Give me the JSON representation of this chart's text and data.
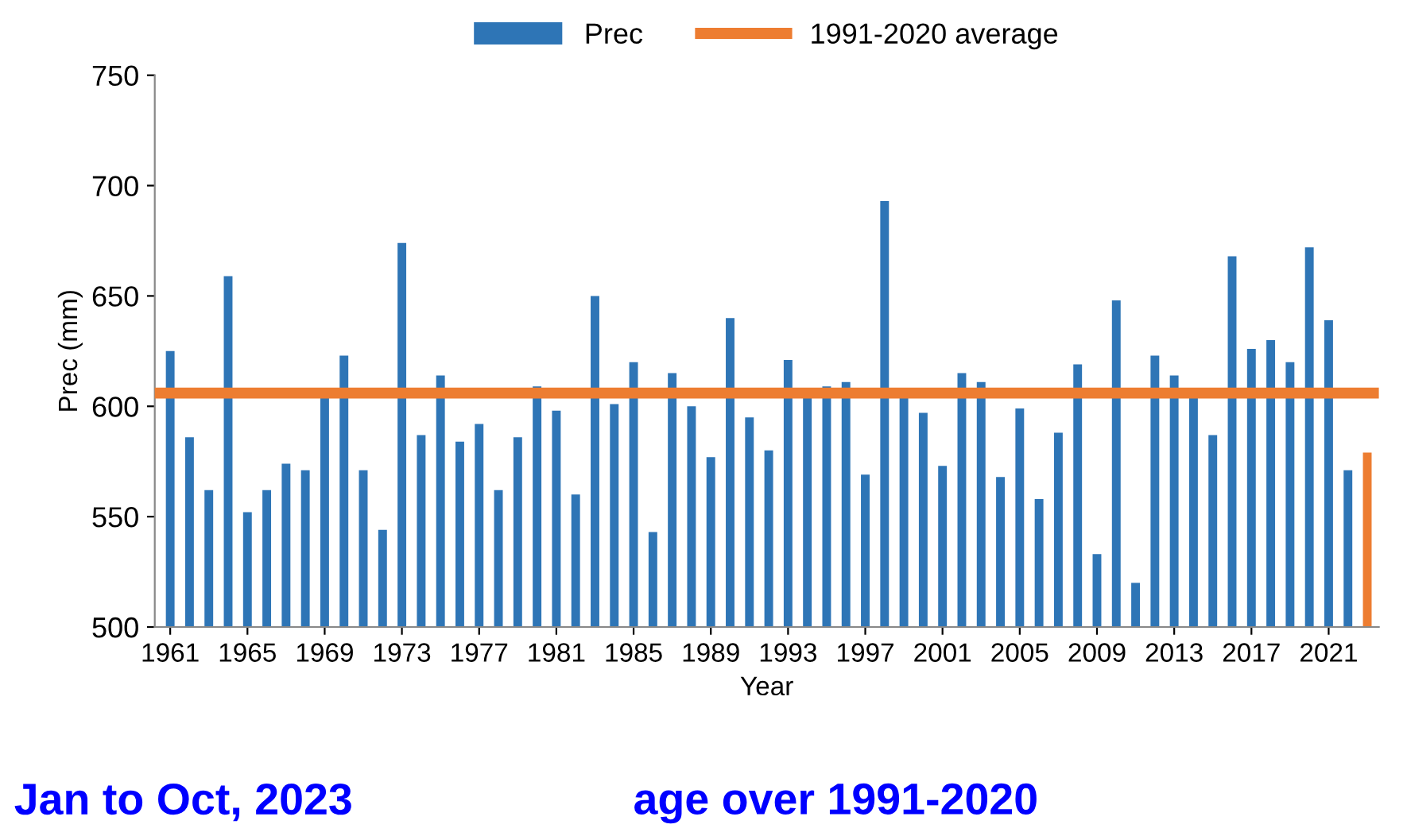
{
  "chart_data": {
    "type": "bar",
    "ylabel": "Prec (mm)",
    "xlabel": "Year",
    "categories": [
      "1961",
      null,
      null,
      null,
      "1965",
      null,
      null,
      null,
      "1969",
      null,
      null,
      null,
      "1973",
      null,
      null,
      null,
      "1977",
      null,
      null,
      null,
      "1981",
      null,
      null,
      null,
      "1985",
      null,
      null,
      null,
      "1989",
      null,
      null,
      null,
      "1993",
      null,
      null,
      null,
      "1997",
      null,
      null,
      null,
      "2001",
      null,
      null,
      null,
      "2005",
      null,
      null,
      null,
      "2009",
      null,
      null,
      null,
      "2013",
      null,
      null,
      null,
      "2017",
      null,
      null,
      null,
      "2021",
      null,
      null
    ],
    "series": [
      {
        "name": "Prec",
        "color": "#2e75b6",
        "values": [
          625,
          586,
          562,
          659,
          552,
          562,
          574,
          571,
          604,
          623,
          571,
          544,
          674,
          587,
          614,
          584,
          592,
          562,
          586,
          609,
          598,
          560,
          650,
          601,
          620,
          543,
          615,
          600,
          577,
          640,
          595,
          580,
          621,
          604,
          609,
          611,
          569,
          693,
          604,
          597,
          573,
          615,
          611,
          568,
          599,
          558,
          588,
          619,
          533,
          648,
          520,
          623,
          614,
          604,
          587,
          668,
          626,
          630,
          620,
          672,
          639,
          571,
          579
        ],
        "colors": [
          "#2e75b6",
          "#2e75b6",
          "#2e75b6",
          "#2e75b6",
          "#2e75b6",
          "#2e75b6",
          "#2e75b6",
          "#2e75b6",
          "#2e75b6",
          "#2e75b6",
          "#2e75b6",
          "#2e75b6",
          "#2e75b6",
          "#2e75b6",
          "#2e75b6",
          "#2e75b6",
          "#2e75b6",
          "#2e75b6",
          "#2e75b6",
          "#2e75b6",
          "#2e75b6",
          "#2e75b6",
          "#2e75b6",
          "#2e75b6",
          "#2e75b6",
          "#2e75b6",
          "#2e75b6",
          "#2e75b6",
          "#2e75b6",
          "#2e75b6",
          "#2e75b6",
          "#2e75b6",
          "#2e75b6",
          "#2e75b6",
          "#2e75b6",
          "#2e75b6",
          "#2e75b6",
          "#2e75b6",
          "#2e75b6",
          "#2e75b6",
          "#2e75b6",
          "#2e75b6",
          "#2e75b6",
          "#2e75b6",
          "#2e75b6",
          "#2e75b6",
          "#2e75b6",
          "#2e75b6",
          "#2e75b6",
          "#2e75b6",
          "#2e75b6",
          "#2e75b6",
          "#2e75b6",
          "#2e75b6",
          "#2e75b6",
          "#2e75b6",
          "#2e75b6",
          "#2e75b6",
          "#2e75b6",
          "#2e75b6",
          "#2e75b6",
          "#2e75b6",
          "#ed7d31"
        ]
      }
    ],
    "ref_lines": [
      {
        "axis": "y",
        "value": 606,
        "label": "1991-2020 average",
        "color": "#ed7d31"
      }
    ],
    "ylim": [
      500,
      750
    ],
    "yticks": [
      500,
      550,
      600,
      650,
      700,
      750
    ],
    "grid": false,
    "legend": "top",
    "annotations": [
      "Jan to Oct, 2023",
      "age over 1991-2020"
    ]
  }
}
